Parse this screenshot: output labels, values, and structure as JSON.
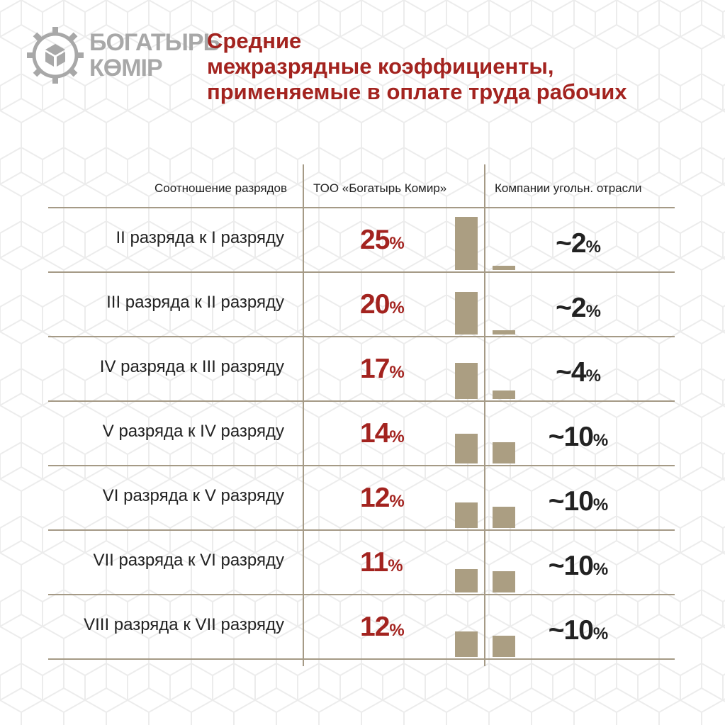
{
  "brand": {
    "line1": "БОГАТЫРЬ",
    "line2": "КӨМІР"
  },
  "title": {
    "line1": "Средние",
    "line2": "межразрядные коэффициенты,",
    "line3": "применяемые в оплате труда рабочих"
  },
  "colors": {
    "accent": "#a3231f",
    "bar": "#ab9e82",
    "rule": "#a59a86",
    "text": "#222222"
  },
  "chart_data": {
    "type": "bar",
    "headers": [
      "Соотношение разрядов",
      "ТОО «Богатырь Комир»",
      "Компании угольн. отрасли"
    ],
    "categories": [
      "II разряда к I разряду",
      "III разряда к II разряду",
      "IV разряда к III разряду",
      "V разряда к IV разряду",
      "VI разряда к V разряду",
      "VII разряда к VI разряду",
      "VIII разряда к VII разряду"
    ],
    "series": [
      {
        "name": "ТОО «Богатырь Комир»",
        "values": [
          25,
          20,
          17,
          14,
          12,
          11,
          12
        ],
        "labels": [
          "25",
          "20",
          "17",
          "14",
          "12",
          "11",
          "12"
        ]
      },
      {
        "name": "Компании угольн. отрасли",
        "values": [
          2,
          2,
          4,
          10,
          10,
          10,
          10
        ],
        "labels": [
          "~2",
          "~2",
          "~4",
          "~10",
          "~10",
          "~10",
          "~10"
        ]
      }
    ],
    "unit": "%"
  }
}
